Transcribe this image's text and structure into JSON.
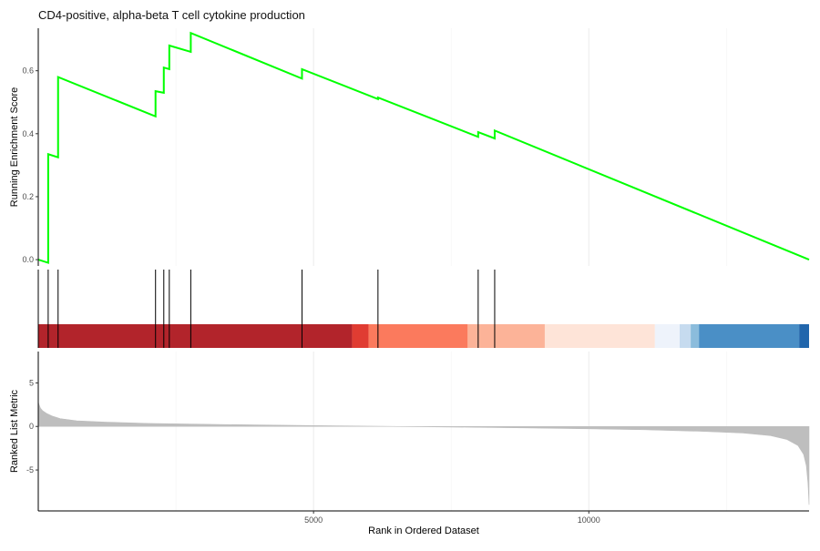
{
  "chart_data": {
    "type": "line",
    "title": "CD4-positive, alpha-beta T cell cytokine production",
    "xlabel": "Rank in Ordered Dataset",
    "xlim": [
      0,
      14000
    ],
    "x_ticks": [
      5000,
      10000
    ],
    "x_tick_labels": [
      "5000",
      "10000"
    ],
    "grid": "vertical major gridlines",
    "colors": {
      "es_line": "#00ff00",
      "gridline": "#ebebeb",
      "metric_fill": "#bebebe",
      "hit_line": "#000000"
    },
    "panels": {
      "enrichment": {
        "ylabel": "Running Enrichment Score",
        "ylim": [
          -0.02,
          0.735
        ],
        "y_ticks": [
          0.0,
          0.2,
          0.4,
          0.6
        ],
        "y_tick_labels": [
          "0.0",
          "0.2",
          "0.4",
          "0.6"
        ],
        "series": [
          {
            "x": [
              0,
              180,
              180,
              360,
              360,
              2130,
              2130,
              2280,
              2280,
              2380,
              2380,
              2770,
              2770,
              4790,
              4790,
              6170,
              6170,
              7990,
              7990,
              8290,
              8290,
              14000
            ],
            "values": [
              0.0,
              -0.01,
              0.335,
              0.325,
              0.58,
              0.455,
              0.535,
              0.53,
              0.61,
              0.605,
              0.68,
              0.66,
              0.72,
              0.575,
              0.605,
              0.51,
              0.515,
              0.39,
              0.405,
              0.385,
              0.41,
              0.0
            ]
          }
        ]
      },
      "hits": {
        "positions": [
          180,
          360,
          2130,
          2280,
          2380,
          2770,
          4790,
          6170,
          7990,
          8290
        ],
        "color_bands": [
          {
            "x0": 0,
            "x1": 5700,
            "color": "#b2242b"
          },
          {
            "x0": 5700,
            "x1": 6000,
            "color": "#e03c32"
          },
          {
            "x0": 6000,
            "x1": 7800,
            "color": "#fb7a5d"
          },
          {
            "x0": 7800,
            "x1": 9200,
            "color": "#fcb398"
          },
          {
            "x0": 9200,
            "x1": 11200,
            "color": "#fee4d8"
          },
          {
            "x0": 11200,
            "x1": 11650,
            "color": "#eef3fb"
          },
          {
            "x0": 11650,
            "x1": 11850,
            "color": "#c6dbef"
          },
          {
            "x0": 11850,
            "x1": 12000,
            "color": "#8bbcdc"
          },
          {
            "x0": 12000,
            "x1": 13820,
            "color": "#4a8fc6"
          },
          {
            "x0": 13820,
            "x1": 14000,
            "color": "#2166ac"
          }
        ]
      },
      "ranked_metric": {
        "ylabel": "Ranked List Metric",
        "ylim": [
          -9.7,
          8.6
        ],
        "y_ticks": [
          5,
          0,
          -5
        ],
        "y_tick_labels": [
          "5",
          "0",
          "-5"
        ],
        "profile": {
          "x": [
            0,
            15,
            40,
            80,
            150,
            250,
            400,
            700,
            1200,
            2000,
            3000,
            4000,
            5000,
            6000,
            7000,
            8000,
            9000,
            10000,
            11000,
            12000,
            12800,
            13300,
            13600,
            13800,
            13900,
            13950,
            13980,
            14000
          ],
          "values": [
            2.8,
            2.5,
            2.1,
            1.8,
            1.5,
            1.2,
            0.9,
            0.65,
            0.5,
            0.35,
            0.25,
            0.17,
            0.1,
            0.03,
            -0.03,
            -0.1,
            -0.18,
            -0.27,
            -0.38,
            -0.55,
            -0.75,
            -1.05,
            -1.5,
            -2.2,
            -3.2,
            -4.5,
            -6.5,
            -9.0
          ]
        }
      }
    }
  }
}
